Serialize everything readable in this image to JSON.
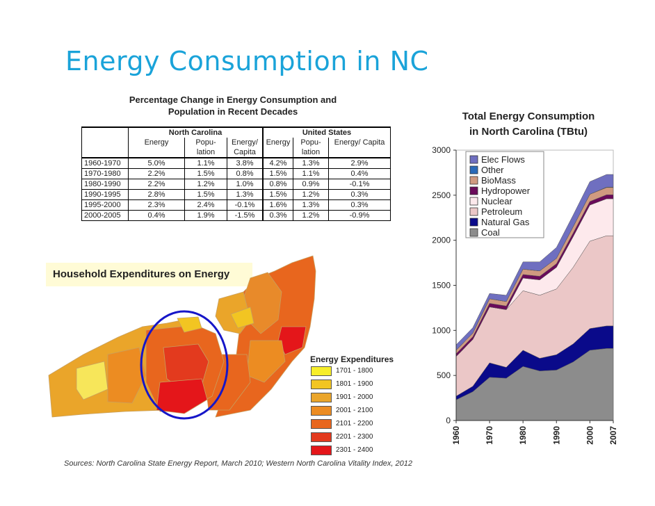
{
  "slide": {
    "title": "Energy Consumption in NC",
    "sources": "Sources:  North Carolina State Energy Report, March 2010; Western North Carolina Vitality Index, 2012"
  },
  "table": {
    "title_line1": "Percentage Change in Energy Consumption and",
    "title_line2": "Population in Recent Decades",
    "group_nc": "North Carolina",
    "group_us": "United States",
    "col_energy": "Energy",
    "col_popu": "Popu-",
    "col_popu2": "lation",
    "col_epc": "Energy/",
    "col_epc2": "Capita",
    "col_us_epc": "Energy/ Capita",
    "rows": [
      {
        "period": "1960-1970",
        "nc_energy": "5.0%",
        "nc_pop": "1.1%",
        "nc_epc": "3.8%",
        "us_energy": "4.2%",
        "us_pop": "1.3%",
        "us_epc": "2.9%"
      },
      {
        "period": "1970-1980",
        "nc_energy": "2.2%",
        "nc_pop": "1.5%",
        "nc_epc": "0.8%",
        "us_energy": "1.5%",
        "us_pop": "1.1%",
        "us_epc": "0.4%"
      },
      {
        "period": "1980-1990",
        "nc_energy": "2.2%",
        "nc_pop": "1.2%",
        "nc_epc": "1.0%",
        "us_energy": "0.8%",
        "us_pop": "0.9%",
        "us_epc": "-0.1%"
      },
      {
        "period": "1990-1995",
        "nc_energy": "2.8%",
        "nc_pop": "1.5%",
        "nc_epc": "1.3%",
        "us_energy": "1.5%",
        "us_pop": "1.2%",
        "us_epc": "0.3%"
      },
      {
        "period": "1995-2000",
        "nc_energy": "2.3%",
        "nc_pop": "2.4%",
        "nc_epc": "-0.1%",
        "us_energy": "1.6%",
        "us_pop": "1.3%",
        "us_epc": "0.3%"
      },
      {
        "period": "2000-2005",
        "nc_energy": "0.4%",
        "nc_pop": "1.9%",
        "nc_epc": "-1.5%",
        "us_energy": "0.3%",
        "us_pop": "1.2%",
        "us_epc": "-0.9%"
      }
    ]
  },
  "map": {
    "title": "Household Expenditures on Energy",
    "legend_title": "Energy Expenditures",
    "legend": [
      {
        "label": "1701 - 1800",
        "color": "#f7ee2a"
      },
      {
        "label": "1801 - 1900",
        "color": "#f2c522"
      },
      {
        "label": "1901 - 2000",
        "color": "#eaa52a"
      },
      {
        "label": "2001 - 2100",
        "color": "#ec8c22"
      },
      {
        "label": "2101 - 2200",
        "color": "#e8661e"
      },
      {
        "label": "2201 - 2300",
        "color": "#e33a1e"
      },
      {
        "label": "2301 - 2400",
        "color": "#e4161a"
      }
    ],
    "highlight_color": "#1616c8"
  },
  "chart_data": {
    "type": "area",
    "title_line1": "Total Energy Consumption",
    "title_line2": "in North Carolina (TBtu)",
    "x": [
      1960,
      1965,
      1970,
      1975,
      1980,
      1985,
      1990,
      1995,
      2000,
      2005,
      2007
    ],
    "x_ticks": [
      1960,
      1970,
      1980,
      1990,
      2000,
      2007
    ],
    "ylim": [
      0,
      3000
    ],
    "y_ticks": [
      0,
      500,
      1000,
      1500,
      2000,
      2500,
      3000
    ],
    "legend_position": "top-left",
    "series": [
      {
        "name": "Coal",
        "color": "#8c8c8c",
        "values": [
          230,
          320,
          480,
          470,
          600,
          550,
          560,
          650,
          780,
          800,
          800
        ]
      },
      {
        "name": "Natural Gas",
        "color": "#0a0a8a",
        "values": [
          40,
          60,
          160,
          120,
          180,
          140,
          170,
          200,
          240,
          250,
          250
        ]
      },
      {
        "name": "Petroleum",
        "color": "#ebc7c7",
        "values": [
          440,
          520,
          620,
          640,
          660,
          700,
          730,
          850,
          970,
          1000,
          1000
        ]
      },
      {
        "name": "Nuclear",
        "color": "#fde9ec",
        "values": [
          0,
          0,
          0,
          0,
          140,
          170,
          240,
          340,
          400,
          410,
          410
        ]
      },
      {
        "name": "Hydropower",
        "color": "#6a0a5a",
        "values": [
          30,
          30,
          40,
          40,
          40,
          40,
          40,
          40,
          40,
          45,
          45
        ]
      },
      {
        "name": "BioMass",
        "color": "#d09a80",
        "values": [
          40,
          40,
          50,
          50,
          60,
          60,
          60,
          70,
          80,
          80,
          80
        ]
      },
      {
        "name": "Other",
        "color": "#2a6ab8",
        "values": [
          0,
          0,
          0,
          0,
          0,
          0,
          0,
          0,
          0,
          5,
          5
        ]
      },
      {
        "name": "Elec Flows",
        "color": "#6f6fc0",
        "values": [
          60,
          60,
          60,
          70,
          80,
          100,
          120,
          130,
          140,
          140,
          140
        ]
      }
    ]
  }
}
